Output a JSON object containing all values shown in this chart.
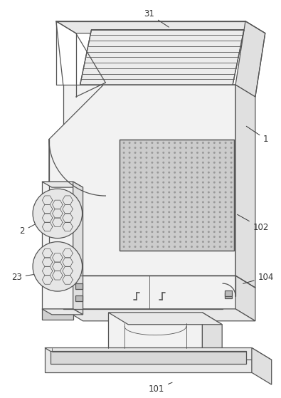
{
  "fig_width": 3.95,
  "fig_height": 5.59,
  "dpi": 100,
  "bg_color": "#ffffff",
  "lc": "#555555",
  "lw": 0.9,
  "lw_thin": 0.6,
  "face_front": "#f2f2f2",
  "face_side": "#e0e0e0",
  "face_top": "#e8e8e8",
  "face_dark": "#d0d0d0",
  "filter_color": "#cccccc",
  "dot_color": "#999999",
  "label_fontsize": 8.5,
  "label_color": "#333333"
}
